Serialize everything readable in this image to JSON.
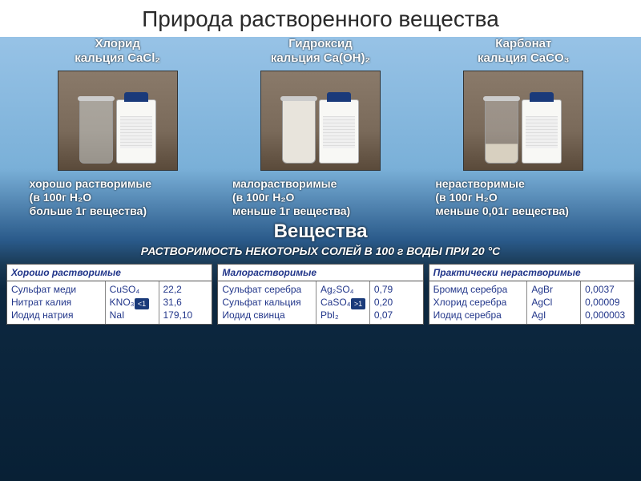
{
  "title": "Природа растворенного вещества",
  "samples": [
    {
      "name": "Хлорид\nкальция CaCl₂",
      "beaker": "clear",
      "caption": "хорошо растворимые\n(в 100г H₂O\nбольше 1г вещества)"
    },
    {
      "name": "Гидроксид\nкальция Ca(OH)₂",
      "beaker": "milky",
      "caption": "малорастворимые\n(в 100г H₂O\nменьше 1г вещества)"
    },
    {
      "name": "Карбонат\nкальция CaCO₃",
      "beaker": "sed",
      "caption": "нерастворимые\n(в 100г H₂O\nменьше 0,01г вещества)"
    }
  ],
  "central": "Вещества",
  "subcaption": "РАСТВОРИМОСТЬ НЕКОТОРЫХ СОЛЕЙ В 100 г ВОДЫ ПРИ 20 °С",
  "badges": [
    "<1",
    ">1"
  ],
  "tables": [
    {
      "head": "Хорошо растворимые",
      "rows": [
        [
          "Сульфат меди",
          "CuSO₄",
          "22,2"
        ],
        [
          "Нитрат калия",
          "KNO₃",
          "31,6"
        ],
        [
          "Иодид натрия",
          "NaI",
          "179,10"
        ]
      ]
    },
    {
      "head": "Малорастворимые",
      "rows": [
        [
          "Сульфат серебра",
          "Ag₂SO₄",
          "0,79"
        ],
        [
          "Сульфат кальция",
          "CaSO₄",
          "0,20"
        ],
        [
          "Иодид свинца",
          "PbI₂",
          "0,07"
        ]
      ]
    },
    {
      "head": "Практически нерастворимые",
      "rows": [
        [
          "Бромид серебра",
          "AgBr",
          "0,0037"
        ],
        [
          "Хлорид серебра",
          "AgCl",
          "0,00009"
        ],
        [
          "Иодид серебра",
          "AgI",
          "0,000003"
        ]
      ]
    }
  ]
}
